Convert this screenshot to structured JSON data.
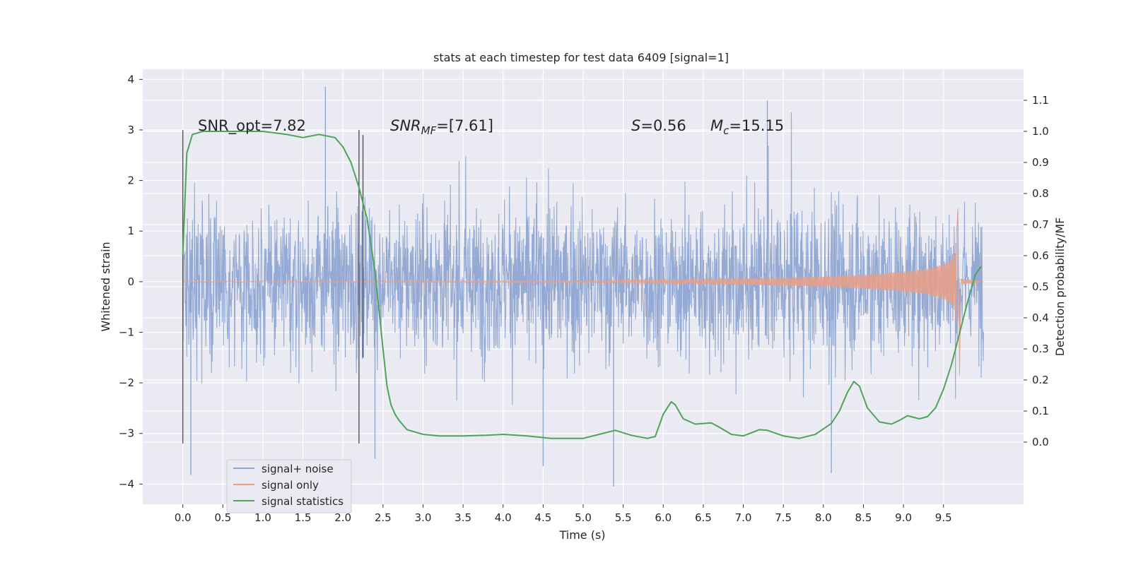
{
  "chart_data": {
    "type": "line",
    "title": "stats at each timestep for test data 6409 [signal=1]",
    "xlabel": "Time (s)",
    "ylabel": "Whitened strain",
    "y2label": "Detection probability/MF",
    "xlim": [
      -0.5,
      10.5
    ],
    "ylim": [
      -4.4,
      4.2
    ],
    "y2lim": [
      -0.2,
      1.2
    ],
    "xticks": [
      "0.0",
      "0.5",
      "1.0",
      "1.5",
      "2.0",
      "2.5",
      "3.0",
      "3.5",
      "4.0",
      "4.5",
      "5.0",
      "5.5",
      "6.0",
      "6.5",
      "7.0",
      "7.5",
      "8.0",
      "8.5",
      "9.0",
      "9.5"
    ],
    "yticks": [
      "4",
      "3",
      "2",
      "1",
      "0",
      "−1",
      "−2",
      "−3",
      "−4"
    ],
    "y2ticks": [
      "1.1",
      "1.0",
      "0.9",
      "0.8",
      "0.7",
      "0.6",
      "0.5",
      "0.4",
      "0.3",
      "0.2",
      "0.1",
      "0.0"
    ],
    "grid": true,
    "legend_position": "lower-left",
    "legend": [
      {
        "label": "signal+ noise",
        "color": "#8fa6d2"
      },
      {
        "label": "signal only",
        "color": "#e8a088"
      },
      {
        "label": "signal statistics",
        "color": "#4ea45a"
      }
    ],
    "colors": {
      "background": "#eaeaf2",
      "noise": "#8fa6d2",
      "signal": "#e5a08a",
      "statistic": "#4ea45a",
      "marker": "#555555"
    },
    "annotations": {
      "snr_opt": "SNR_opt=7.82",
      "snr_mf_base": "SNR",
      "snr_mf_sub": "MF",
      "snr_mf_rest": "=[7.61]",
      "s_base": "S",
      "s_rest": "=0.56",
      "mc_base": "M",
      "mc_sub": "c",
      "mc_rest": "=15.15"
    },
    "markers": {
      "x": [
        0.0,
        2.2,
        2.25
      ],
      "y_ranges": [
        [
          -3.2,
          3.0
        ],
        [
          -3.2,
          3.0
        ],
        [
          -1.5,
          2.9
        ]
      ]
    },
    "noise_envelope": {
      "x_range": [
        0.0,
        10.0
      ],
      "typical_amplitude": 2.0,
      "extreme_peaks": [
        {
          "x": 1.78,
          "y": 3.85
        },
        {
          "x": 7.3,
          "y": 3.58
        },
        {
          "x": 0.1,
          "y": -3.82
        },
        {
          "x": 5.38,
          "y": -4.05
        },
        {
          "x": 4.5,
          "y": -3.65
        },
        {
          "x": 8.1,
          "y": -3.78
        },
        {
          "x": 2.4,
          "y": -3.5
        }
      ]
    },
    "series": [
      {
        "name": "signal only",
        "axis": "left",
        "x": [
          0.0,
          5.0,
          6.0,
          7.0,
          7.5,
          8.0,
          8.5,
          9.0,
          9.3,
          9.5,
          9.6,
          9.65,
          9.68,
          9.7,
          9.72,
          10.0
        ],
        "amplitude": [
          0.01,
          0.02,
          0.04,
          0.06,
          0.08,
          0.1,
          0.14,
          0.2,
          0.26,
          0.35,
          0.45,
          0.6,
          1.45,
          -1.85,
          0.05,
          0.0
        ]
      },
      {
        "name": "signal statistics",
        "axis": "right",
        "x": [
          0.0,
          0.05,
          0.12,
          0.25,
          0.5,
          1.0,
          1.3,
          1.5,
          1.7,
          1.9,
          2.0,
          2.1,
          2.2,
          2.3,
          2.4,
          2.5,
          2.55,
          2.6,
          2.65,
          2.7,
          2.8,
          3.0,
          3.2,
          3.5,
          3.8,
          4.0,
          4.3,
          4.6,
          5.0,
          5.2,
          5.4,
          5.6,
          5.8,
          5.9,
          6.0,
          6.1,
          6.15,
          6.25,
          6.4,
          6.6,
          6.7,
          6.85,
          7.0,
          7.2,
          7.3,
          7.5,
          7.7,
          7.9,
          8.1,
          8.2,
          8.3,
          8.38,
          8.45,
          8.55,
          8.7,
          8.85,
          8.95,
          9.05,
          9.2,
          9.3,
          9.4,
          9.5,
          9.6,
          9.7,
          9.8,
          9.9,
          9.97
        ],
        "y": [
          0.6,
          0.93,
          0.99,
          1.0,
          1.0,
          1.0,
          0.99,
          0.98,
          0.99,
          0.98,
          0.95,
          0.9,
          0.82,
          0.72,
          0.55,
          0.3,
          0.18,
          0.12,
          0.09,
          0.07,
          0.04,
          0.025,
          0.02,
          0.02,
          0.022,
          0.025,
          0.02,
          0.012,
          0.012,
          0.025,
          0.038,
          0.022,
          0.012,
          0.018,
          0.09,
          0.13,
          0.12,
          0.075,
          0.058,
          0.062,
          0.048,
          0.025,
          0.02,
          0.04,
          0.038,
          0.02,
          0.012,
          0.025,
          0.06,
          0.1,
          0.16,
          0.195,
          0.18,
          0.11,
          0.065,
          0.058,
          0.07,
          0.085,
          0.075,
          0.082,
          0.11,
          0.17,
          0.25,
          0.35,
          0.45,
          0.54,
          0.565
        ]
      }
    ]
  }
}
